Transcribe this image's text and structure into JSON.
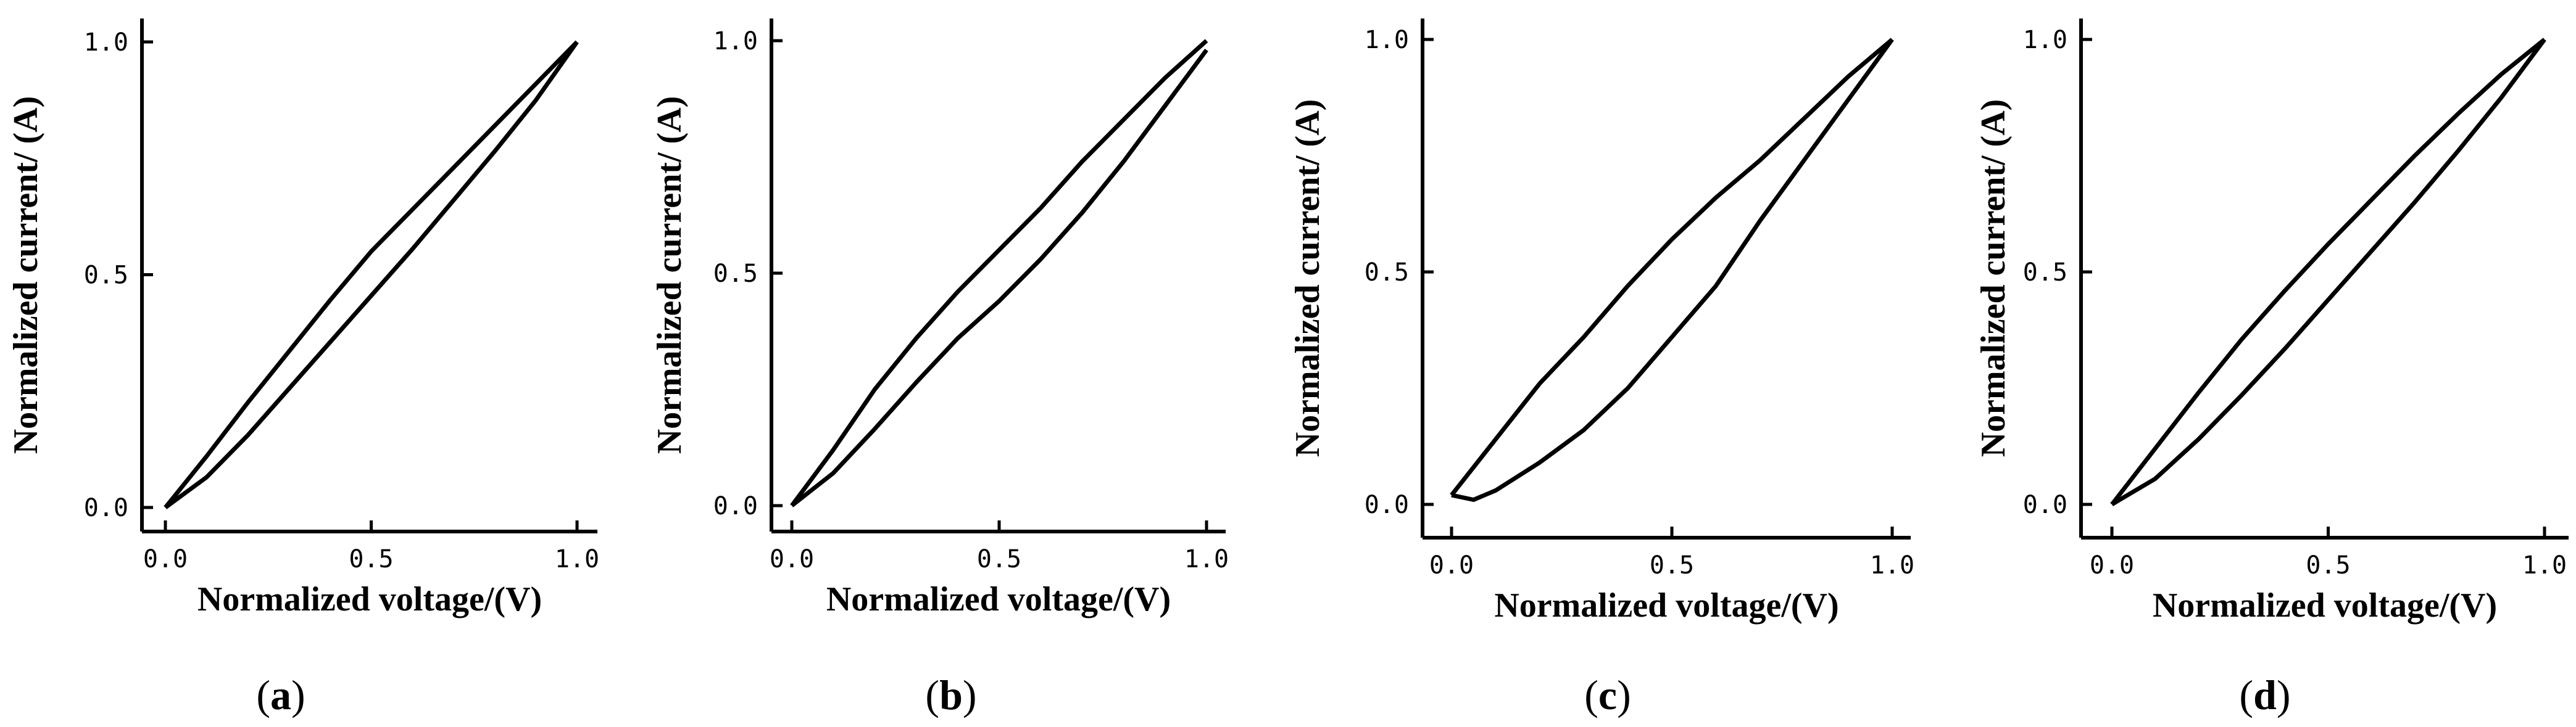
{
  "figure": {
    "chart_data": [
      {
        "type": "line",
        "panel": "(a)",
        "panel_letter": "a",
        "xlabel": "Normalized voltage/(V)",
        "ylabel": "Normalized current/ (A)",
        "xlim": [
          0,
          1
        ],
        "ylim": [
          0,
          1
        ],
        "xticks": [
          "0.0",
          "0.5",
          "1.0"
        ],
        "yticks": [
          "0.0",
          "0.5",
          "1.0"
        ],
        "grid": false,
        "series": [
          {
            "name": "upper branch",
            "x": [
              0,
              0.1,
              0.2,
              0.3,
              0.4,
              0.5,
              0.6,
              0.7,
              0.8,
              0.9,
              1.0
            ],
            "y": [
              0,
              0.11,
              0.225,
              0.335,
              0.445,
              0.55,
              0.64,
              0.73,
              0.82,
              0.91,
              1.0
            ]
          },
          {
            "name": "lower branch",
            "x": [
              0,
              0.1,
              0.2,
              0.3,
              0.4,
              0.5,
              0.6,
              0.7,
              0.8,
              0.9,
              1.0
            ],
            "y": [
              0,
              0.065,
              0.155,
              0.255,
              0.355,
              0.455,
              0.555,
              0.66,
              0.765,
              0.875,
              1.0
            ]
          }
        ]
      },
      {
        "type": "line",
        "panel": "(b)",
        "panel_letter": "b",
        "xlabel": "Normalized voltage/(V)",
        "ylabel": "Normalized current/ (A)",
        "xlim": [
          0,
          1
        ],
        "ylim": [
          0,
          1
        ],
        "xticks": [
          "0.0",
          "0.5",
          "1.0"
        ],
        "yticks": [
          "0.0",
          "0.5",
          "1.0"
        ],
        "grid": false,
        "series": [
          {
            "name": "upper branch",
            "x": [
              0,
              0.1,
              0.2,
              0.3,
              0.4,
              0.5,
              0.6,
              0.7,
              0.8,
              0.9,
              1.0
            ],
            "y": [
              0,
              0.12,
              0.25,
              0.36,
              0.46,
              0.55,
              0.64,
              0.74,
              0.83,
              0.92,
              1.0
            ]
          },
          {
            "name": "lower branch",
            "x": [
              0,
              0.1,
              0.2,
              0.3,
              0.4,
              0.5,
              0.6,
              0.7,
              0.8,
              0.9,
              1.0
            ],
            "y": [
              0,
              0.07,
              0.165,
              0.265,
              0.36,
              0.44,
              0.53,
              0.63,
              0.74,
              0.86,
              0.98
            ]
          }
        ]
      },
      {
        "type": "line",
        "panel": "(c)",
        "panel_letter": "c",
        "xlabel": "Normalized voltage/(V)",
        "ylabel": "Normalized current/ (A)",
        "xlim": [
          0,
          1
        ],
        "ylim": [
          0,
          1
        ],
        "xticks": [
          "0.0",
          "0.5",
          "1.0"
        ],
        "yticks": [
          "0.0",
          "0.5",
          "1.0"
        ],
        "grid": false,
        "series": [
          {
            "name": "upper branch",
            "x": [
              0,
              0.05,
              0.1,
              0.2,
              0.3,
              0.4,
              0.5,
              0.6,
              0.7,
              0.8,
              0.9,
              1.0
            ],
            "y": [
              0.02,
              0.08,
              0.14,
              0.26,
              0.36,
              0.47,
              0.57,
              0.66,
              0.74,
              0.83,
              0.92,
              1.0
            ]
          },
          {
            "name": "lower branch",
            "x": [
              0,
              0.05,
              0.1,
              0.2,
              0.3,
              0.4,
              0.5,
              0.6,
              0.7,
              0.8,
              0.9,
              1.0
            ],
            "y": [
              0.02,
              0.01,
              0.03,
              0.09,
              0.16,
              0.25,
              0.36,
              0.47,
              0.61,
              0.74,
              0.87,
              1.0
            ]
          }
        ]
      },
      {
        "type": "line",
        "panel": "(d)",
        "panel_letter": "d",
        "xlabel": "Normalized voltage/(V)",
        "ylabel": "Normalized current/ (A)",
        "xlim": [
          0,
          1
        ],
        "ylim": [
          0,
          1
        ],
        "xticks": [
          "0.0",
          "0.5",
          "1.0"
        ],
        "yticks": [
          "0.0",
          "0.5",
          "1.0"
        ],
        "grid": false,
        "series": [
          {
            "name": "upper branch",
            "x": [
              0,
              0.1,
              0.2,
              0.3,
              0.4,
              0.5,
              0.6,
              0.7,
              0.8,
              0.9,
              1.0
            ],
            "y": [
              0,
              0.12,
              0.24,
              0.355,
              0.46,
              0.56,
              0.655,
              0.75,
              0.84,
              0.925,
              1.0
            ]
          },
          {
            "name": "lower branch",
            "x": [
              0,
              0.1,
              0.2,
              0.3,
              0.4,
              0.5,
              0.6,
              0.7,
              0.8,
              0.9,
              1.0
            ],
            "y": [
              0,
              0.055,
              0.14,
              0.235,
              0.335,
              0.44,
              0.545,
              0.65,
              0.76,
              0.875,
              1.0
            ]
          }
        ]
      }
    ]
  }
}
